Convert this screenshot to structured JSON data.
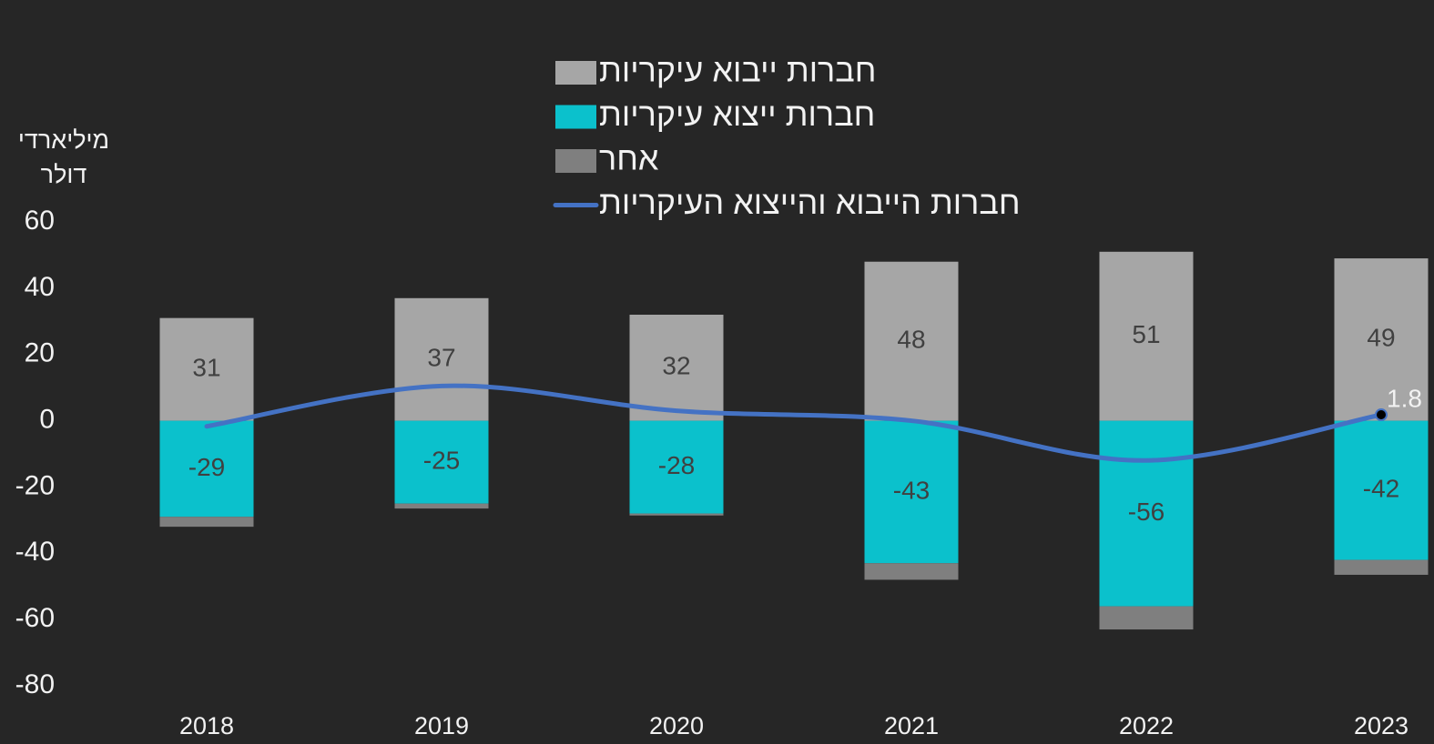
{
  "chart_data": {
    "type": "bar",
    "stacked": true,
    "ylabel": "מיליארדי דולר",
    "categories": [
      "2018",
      "2019",
      "2020",
      "2021",
      "2022",
      "2023"
    ],
    "ylim": [
      -80,
      60
    ],
    "yticks": [
      -80,
      -60,
      -40,
      -20,
      0,
      20,
      40,
      60
    ],
    "series": [
      {
        "name": "חברות ייבוא עיקריות",
        "type": "bar",
        "color": "#a6a6a6",
        "data_labels": true,
        "values": [
          31,
          37,
          32,
          48,
          51,
          49
        ]
      },
      {
        "name": "חברות ייצוא עיקריות",
        "type": "bar",
        "color": "#0bc1cc",
        "data_labels": true,
        "values": [
          -29,
          -25,
          -28,
          -43,
          -56,
          -42
        ]
      },
      {
        "name": "אחר",
        "type": "bar",
        "color": "#7f7f7f",
        "data_labels": false,
        "values": [
          -3,
          -1.5,
          -0.6,
          -5,
          -7,
          -4.5
        ]
      },
      {
        "name": "חברות הייבוא והייצוא העיקריות",
        "type": "line",
        "color": "#4472c4",
        "data_labels": "last",
        "values": [
          -1.7,
          10.5,
          3,
          0,
          -12,
          1.8
        ]
      }
    ]
  }
}
